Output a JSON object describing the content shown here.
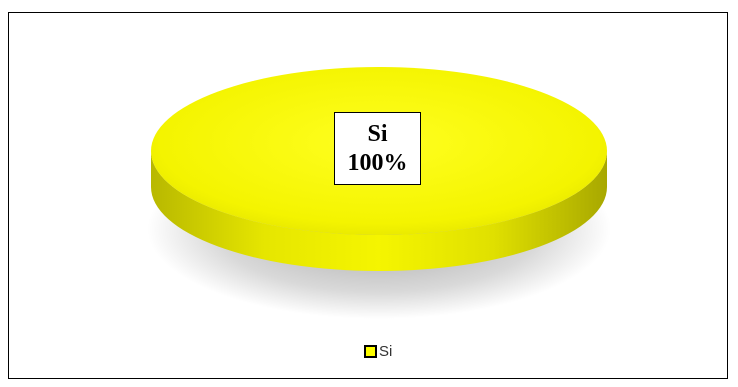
{
  "chart_data": {
    "type": "pie",
    "title": "",
    "categories": [
      "Si"
    ],
    "values": [
      100
    ],
    "data_labels": [
      {
        "name": "Si",
        "percent": "100%"
      }
    ],
    "legend": {
      "position": "bottom",
      "entries": [
        "Si"
      ]
    },
    "colors": {
      "slice": "#ffff00",
      "slice_side": "#d9d900",
      "border": "#000000"
    },
    "style": "3d"
  }
}
